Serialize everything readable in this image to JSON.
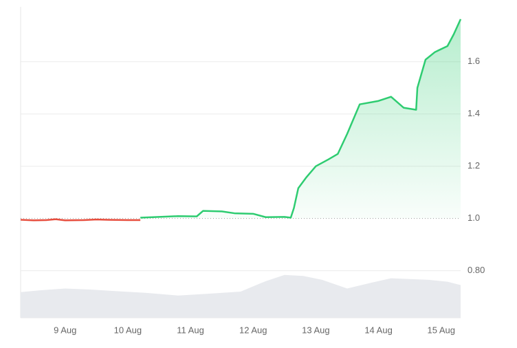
{
  "chart_data": {
    "type": "line",
    "xlim": [
      8.29,
      15.31
    ],
    "ylim": [
      0.62,
      1.81
    ],
    "baseline": 1.0,
    "xticks": [
      {
        "value": 9,
        "label": "9 Aug"
      },
      {
        "value": 10,
        "label": "10 Aug"
      },
      {
        "value": 11,
        "label": "11 Aug"
      },
      {
        "value": 12,
        "label": "12 Aug"
      },
      {
        "value": 13,
        "label": "13 Aug"
      },
      {
        "value": 14,
        "label": "14 Aug"
      },
      {
        "value": 15,
        "label": "15 Aug"
      }
    ],
    "yticks": [
      {
        "value": 0.8,
        "label": "0.80"
      },
      {
        "value": 1.0,
        "label": "1.0"
      },
      {
        "value": 1.2,
        "label": "1.2"
      },
      {
        "value": 1.4,
        "label": "1.4"
      },
      {
        "value": 1.6,
        "label": "1.6"
      }
    ],
    "grid": true,
    "series": [
      {
        "color": "#e74c3c",
        "x": [
          8.29,
          8.5,
          8.7,
          8.85,
          9.0,
          9.3,
          9.5,
          9.7,
          10.0,
          10.2
        ],
        "values": [
          0.995,
          0.993,
          0.994,
          0.997,
          0.993,
          0.994,
          0.996,
          0.995,
          0.994,
          0.994
        ]
      },
      {
        "color": "#2ecc71",
        "fill": true,
        "x": [
          10.2,
          10.5,
          10.8,
          11.1,
          11.2,
          11.5,
          11.7,
          12.0,
          12.2,
          12.5,
          12.6,
          12.65,
          12.72,
          12.85,
          13.0,
          13.2,
          13.35,
          13.5,
          13.7,
          14.0,
          14.2,
          14.4,
          14.6,
          14.62,
          14.75,
          14.9,
          15.1,
          15.2,
          15.31
        ],
        "values": [
          1.003,
          1.006,
          1.009,
          1.008,
          1.029,
          1.027,
          1.02,
          1.018,
          1.005,
          1.006,
          1.003,
          1.04,
          1.116,
          1.158,
          1.2,
          1.226,
          1.247,
          1.324,
          1.437,
          1.45,
          1.466,
          1.424,
          1.416,
          1.5,
          1.608,
          1.637,
          1.66,
          1.705,
          1.763
        ]
      }
    ],
    "volume": {
      "color": "#e8eaee",
      "x": [
        8.29,
        8.6,
        9.0,
        9.4,
        9.8,
        10.3,
        10.8,
        11.3,
        11.8,
        12.2,
        12.5,
        12.8,
        13.1,
        13.5,
        13.9,
        14.2,
        14.5,
        14.8,
        15.1,
        15.31
      ],
      "values": [
        0.718,
        0.725,
        0.732,
        0.728,
        0.722,
        0.715,
        0.705,
        0.712,
        0.72,
        0.76,
        0.784,
        0.78,
        0.765,
        0.732,
        0.755,
        0.771,
        0.768,
        0.765,
        0.758,
        0.745
      ]
    }
  }
}
